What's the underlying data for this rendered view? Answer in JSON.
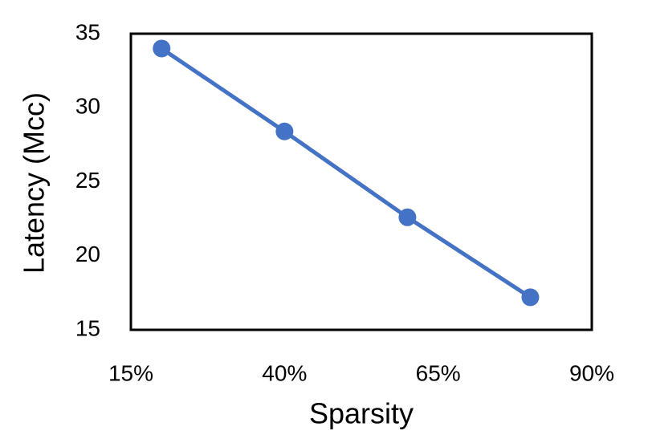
{
  "chart_data": {
    "type": "line",
    "x": [
      20,
      40,
      60,
      80
    ],
    "values": [
      34.0,
      28.4,
      22.6,
      17.2
    ],
    "color": "#4472c4",
    "xlabel": "Sparsity",
    "ylabel": "Latency (Mcc)",
    "xlim": [
      15,
      90
    ],
    "xticks": [
      {
        "value": 15,
        "label": "15%"
      },
      {
        "value": 40,
        "label": "40%"
      },
      {
        "value": 65,
        "label": "65%"
      },
      {
        "value": 90,
        "label": "90%"
      }
    ],
    "ylim": [
      15,
      35
    ],
    "yticks": [
      15,
      20,
      25,
      30,
      35
    ],
    "grid": false
  }
}
